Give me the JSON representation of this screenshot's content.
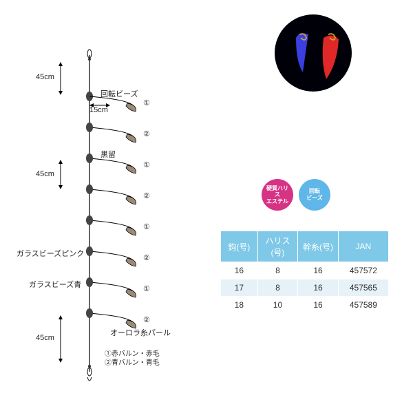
{
  "rig": {
    "seg_top": "45cm",
    "branch": "15cm",
    "seg_mid": "45cm",
    "seg_bot": "45cm",
    "label_rotbead": "回転ビーズ",
    "label_blackstop": "黒留",
    "label_glass_pink": "ガラスビーズピンク",
    "label_glass_blue": "ガラスビーズ青",
    "label_aurora": "オーロラ糸パール",
    "legend1": "①赤バルン・赤毛",
    "legend2": "②青バルン・青毛",
    "circ1": "①",
    "circ2": "②",
    "colors": {
      "line": "#000000",
      "text": "#222222",
      "swivel": "#333333",
      "bead": "#444444",
      "lure": "#9b8b76"
    }
  },
  "product": {
    "bg": "#000008",
    "lure_blue": "#3a3fe0",
    "lure_red": "#e02828",
    "hook": "#d4a030"
  },
  "badges": {
    "ester": {
      "bg": "#d63384",
      "text": "硬質ハリス\nエステル"
    },
    "rotbead": {
      "bg": "#5fb6e8",
      "text": "回転\nビーズ"
    }
  },
  "table": {
    "header_bg": "#7fc8e8",
    "row_alt_bg": "#e6f2f8",
    "columns": [
      "鈎(号)",
      "ハリス(号)",
      "幹糸(号)",
      "JAN"
    ],
    "col_widths": [
      "22%",
      "24%",
      "24%",
      "30%"
    ],
    "rows": [
      [
        "16",
        "8",
        "16",
        "457572"
      ],
      [
        "17",
        "8",
        "16",
        "457565"
      ],
      [
        "18",
        "10",
        "16",
        "457589"
      ]
    ]
  }
}
